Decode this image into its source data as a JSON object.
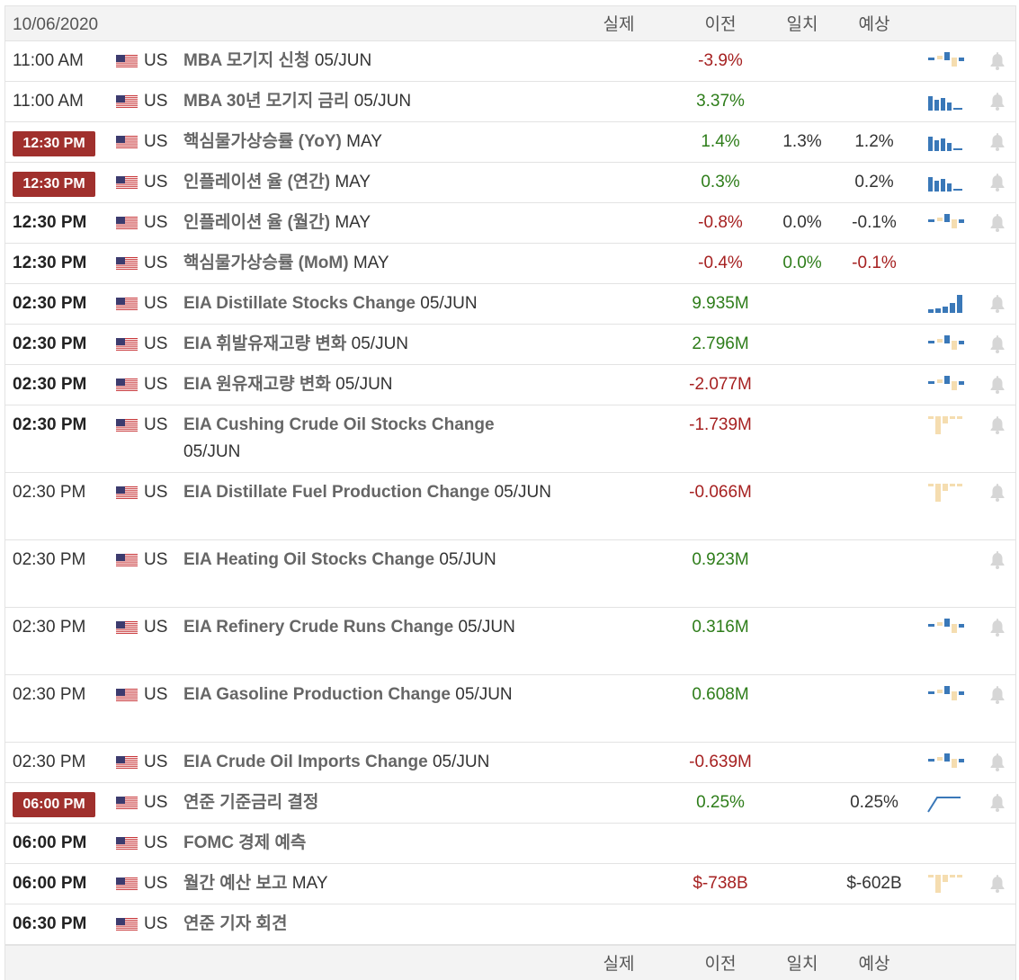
{
  "header": {
    "date": "10/06/2020",
    "col_actual": "실제",
    "col_previous": "이전",
    "col_consensus": "일치",
    "col_forecast": "예상"
  },
  "colors": {
    "positive": "#2e7d1a",
    "negative": "#a62121",
    "badge": "#a0302d",
    "spark_blue": "#3a78b8",
    "spark_tan": "#f5ddb0"
  },
  "events": [
    {
      "time": "11:00 AM",
      "time_style": "normal",
      "country": "US",
      "name": "MBA 모기지 신청",
      "period": "05/JUN",
      "actual": "",
      "previous": "-3.9%",
      "previous_tone": "neg",
      "consensus": "",
      "consensus_tone": "neu",
      "forecast": "",
      "forecast_tone": "neu",
      "sparkline": "mixed",
      "bell": true
    },
    {
      "time": "11:00 AM",
      "time_style": "normal",
      "country": "US",
      "name": "MBA 30년 모기지 금리",
      "period": "05/JUN",
      "actual": "",
      "previous": "3.37%",
      "previous_tone": "pos",
      "consensus": "",
      "consensus_tone": "neu",
      "forecast": "",
      "forecast_tone": "neu",
      "sparkline": "blue-bars",
      "bell": true
    },
    {
      "time": "12:30 PM",
      "time_style": "badge",
      "country": "US",
      "name": "핵심물가상승률 (YoY)",
      "period": "MAY",
      "actual": "",
      "previous": "1.4%",
      "previous_tone": "pos",
      "consensus": "1.3%",
      "consensus_tone": "neu",
      "forecast": "1.2%",
      "forecast_tone": "neu",
      "sparkline": "blue-bars",
      "bell": true
    },
    {
      "time": "12:30 PM",
      "time_style": "badge",
      "country": "US",
      "name": "인플레이션 율 (연간)",
      "period": "MAY",
      "actual": "",
      "previous": "0.3%",
      "previous_tone": "pos",
      "consensus": "",
      "consensus_tone": "neu",
      "forecast": "0.2%",
      "forecast_tone": "neu",
      "sparkline": "blue-bars",
      "bell": true
    },
    {
      "time": "12:30 PM",
      "time_style": "bold",
      "country": "US",
      "name": "인플레이션 율 (월간)",
      "period": "MAY",
      "actual": "",
      "previous": "-0.8%",
      "previous_tone": "neg",
      "consensus": "0.0%",
      "consensus_tone": "neu",
      "forecast": "-0.1%",
      "forecast_tone": "neu",
      "sparkline": "mixed",
      "bell": true
    },
    {
      "time": "12:30 PM",
      "time_style": "bold",
      "country": "US",
      "name": "핵심물가상승률 (MoM)",
      "period": "MAY",
      "actual": "",
      "previous": "-0.4%",
      "previous_tone": "neg",
      "consensus": "0.0%",
      "consensus_tone": "pos",
      "forecast": "-0.1%",
      "forecast_tone": "neg",
      "sparkline": "none",
      "bell": false
    },
    {
      "time": "02:30 PM",
      "time_style": "bold",
      "country": "US",
      "name": "EIA Distillate Stocks Change",
      "period": "05/JUN",
      "actual": "",
      "previous": "9.935M",
      "previous_tone": "pos",
      "consensus": "",
      "consensus_tone": "neu",
      "forecast": "",
      "forecast_tone": "neu",
      "sparkline": "rising",
      "bell": true
    },
    {
      "time": "02:30 PM",
      "time_style": "bold",
      "country": "US",
      "name": "EIA 휘발유재고량 변화",
      "period": "05/JUN",
      "actual": "",
      "previous": "2.796M",
      "previous_tone": "pos",
      "consensus": "",
      "consensus_tone": "neu",
      "forecast": "",
      "forecast_tone": "neu",
      "sparkline": "mixed",
      "bell": true
    },
    {
      "time": "02:30 PM",
      "time_style": "bold",
      "country": "US",
      "name": "EIA 원유재고량 변화",
      "period": "05/JUN",
      "actual": "",
      "previous": "-2.077M",
      "previous_tone": "neg",
      "consensus": "",
      "consensus_tone": "neu",
      "forecast": "",
      "forecast_tone": "neu",
      "sparkline": "mixed",
      "bell": true
    },
    {
      "time": "02:30 PM",
      "time_style": "bold",
      "country": "US",
      "name": "EIA Cushing Crude Oil Stocks Change",
      "period": "05/JUN",
      "actual": "",
      "previous": "-1.739M",
      "previous_tone": "neg",
      "consensus": "",
      "consensus_tone": "neu",
      "forecast": "",
      "forecast_tone": "neu",
      "sparkline": "tan-down",
      "bell": true
    },
    {
      "time": "02:30 PM",
      "time_style": "normal",
      "country": "US",
      "name": "EIA Distillate Fuel Production Change",
      "period": "05/JUN",
      "actual": "",
      "previous": "-0.066M",
      "previous_tone": "neg",
      "consensus": "",
      "consensus_tone": "neu",
      "forecast": "",
      "forecast_tone": "neu",
      "sparkline": "tan-down",
      "bell": true
    },
    {
      "time": "02:30 PM",
      "time_style": "normal",
      "country": "US",
      "name": "EIA Heating Oil Stocks Change",
      "period": "05/JUN",
      "actual": "",
      "previous": "0.923M",
      "previous_tone": "pos",
      "consensus": "",
      "consensus_tone": "neu",
      "forecast": "",
      "forecast_tone": "neu",
      "sparkline": "none",
      "bell": true
    },
    {
      "time": "02:30 PM",
      "time_style": "normal",
      "country": "US",
      "name": "EIA Refinery Crude Runs Change",
      "period": "05/JUN",
      "actual": "",
      "previous": "0.316M",
      "previous_tone": "pos",
      "consensus": "",
      "consensus_tone": "neu",
      "forecast": "",
      "forecast_tone": "neu",
      "sparkline": "mixed",
      "bell": true
    },
    {
      "time": "02:30 PM",
      "time_style": "normal",
      "country": "US",
      "name": "EIA Gasoline Production Change",
      "period": "05/JUN",
      "actual": "",
      "previous": "0.608M",
      "previous_tone": "pos",
      "consensus": "",
      "consensus_tone": "neu",
      "forecast": "",
      "forecast_tone": "neu",
      "sparkline": "mixed",
      "bell": true
    },
    {
      "time": "02:30 PM",
      "time_style": "normal",
      "country": "US",
      "name": "EIA Crude Oil Imports Change",
      "period": "05/JUN",
      "actual": "",
      "previous": "-0.639M",
      "previous_tone": "neg",
      "consensus": "",
      "consensus_tone": "neu",
      "forecast": "",
      "forecast_tone": "neu",
      "sparkline": "mixed",
      "bell": true
    },
    {
      "time": "06:00 PM",
      "time_style": "badge",
      "country": "US",
      "name": "연준 기준금리 결정",
      "period": "",
      "actual": "",
      "previous": "0.25%",
      "previous_tone": "pos",
      "consensus": "",
      "consensus_tone": "neu",
      "forecast": "0.25%",
      "forecast_tone": "neu",
      "sparkline": "line-step",
      "bell": true
    },
    {
      "time": "06:00 PM",
      "time_style": "bold",
      "country": "US",
      "name": "FOMC 경제 예측",
      "period": "",
      "actual": "",
      "previous": "",
      "previous_tone": "neu",
      "consensus": "",
      "consensus_tone": "neu",
      "forecast": "",
      "forecast_tone": "neu",
      "sparkline": "none",
      "bell": false
    },
    {
      "time": "06:00 PM",
      "time_style": "bold",
      "country": "US",
      "name": "월간 예산 보고",
      "period": "MAY",
      "actual": "",
      "previous": "$-738B",
      "previous_tone": "neg",
      "consensus": "",
      "consensus_tone": "neu",
      "forecast": "$-602B",
      "forecast_tone": "neu",
      "sparkline": "tan-down",
      "bell": true
    },
    {
      "time": "06:30 PM",
      "time_style": "bold",
      "country": "US",
      "name": "연준 기자 회견",
      "period": "",
      "actual": "",
      "previous": "",
      "previous_tone": "neu",
      "consensus": "",
      "consensus_tone": "neu",
      "forecast": "",
      "forecast_tone": "neu",
      "sparkline": "none",
      "bell": false
    }
  ],
  "footer": {
    "col_actual": "실제",
    "col_previous": "이전",
    "col_consensus": "일치",
    "col_forecast": "예상"
  }
}
